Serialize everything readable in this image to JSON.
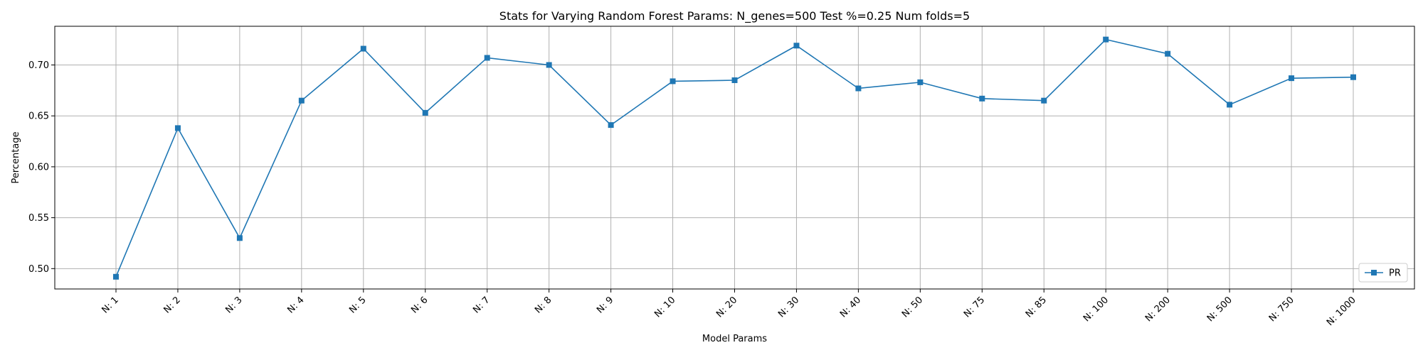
{
  "chart_data": {
    "type": "line",
    "title": "Stats for Varying Random Forest Params: N_genes=500 Test %=0.25 Num folds=5",
    "xlabel": "Model Params",
    "ylabel": "Percentage",
    "categories": [
      "N: 1",
      "N: 2",
      "N: 3",
      "N: 4",
      "N: 5",
      "N: 6",
      "N: 7",
      "N: 8",
      "N: 9",
      "N: 10",
      "N: 20",
      "N: 30",
      "N: 40",
      "N: 50",
      "N: 75",
      "N: 85",
      "N: 100",
      "N: 200",
      "N: 500",
      "N: 750",
      "N: 1000"
    ],
    "series": [
      {
        "name": "PR",
        "color": "#1f77b4",
        "marker": "square",
        "values": [
          0.492,
          0.638,
          0.53,
          0.665,
          0.716,
          0.653,
          0.707,
          0.7,
          0.641,
          0.684,
          0.685,
          0.719,
          0.677,
          0.683,
          0.667,
          0.665,
          0.725,
          0.711,
          0.661,
          0.687,
          0.688
        ]
      }
    ],
    "ylim": [
      0.48,
      0.738
    ],
    "yticks": [
      0.5,
      0.55,
      0.6,
      0.65,
      0.7
    ],
    "ytick_labels": [
      "0.50",
      "0.55",
      "0.60",
      "0.65",
      "0.70"
    ],
    "grid": true,
    "legend_position": "lower-right"
  }
}
